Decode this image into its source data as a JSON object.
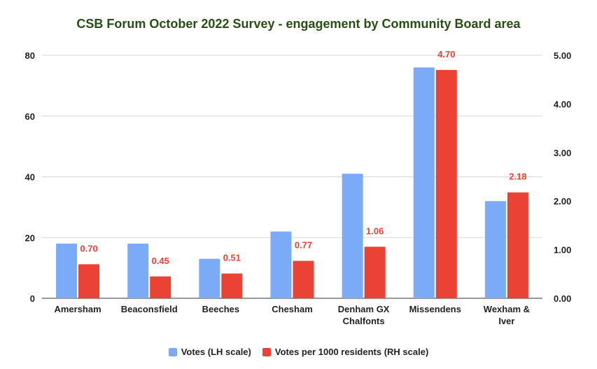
{
  "chart_data": {
    "type": "bar",
    "title": "CSB Forum October 2022 Survey - engagement by Community Board area",
    "xlabel": "",
    "ylabel": "",
    "categories": [
      [
        "Amersham"
      ],
      [
        "Beaconsfield"
      ],
      [
        "Beeches"
      ],
      [
        "Chesham"
      ],
      [
        "Denham GX",
        "Chalfonts"
      ],
      [
        "Missendens"
      ],
      [
        "Wexham &",
        "Iver"
      ]
    ],
    "left_axis": {
      "ylim": [
        0,
        80
      ],
      "ticks": [
        "0",
        "20",
        "40",
        "60",
        "80"
      ]
    },
    "right_axis": {
      "ylim": [
        0,
        5
      ],
      "ticks": [
        "0.00",
        "1.00",
        "2.00",
        "3.00",
        "4.00",
        "5.00"
      ]
    },
    "series": [
      {
        "name": "Votes (LH scale)",
        "axis": "left",
        "color": "#7baaf7",
        "values": [
          18,
          18,
          13,
          22,
          41,
          76,
          32
        ]
      },
      {
        "name": "Votes per 1000 residents (RH scale)",
        "axis": "right",
        "color": "#ea4335",
        "values": [
          0.7,
          0.45,
          0.51,
          0.77,
          1.06,
          4.7,
          2.18
        ],
        "labels": [
          "0.70",
          "0.45",
          "0.51",
          "0.77",
          "1.06",
          "4.70",
          "2.18"
        ],
        "label_color": "#e94235"
      }
    ],
    "grid": true,
    "legend_position": "bottom"
  }
}
